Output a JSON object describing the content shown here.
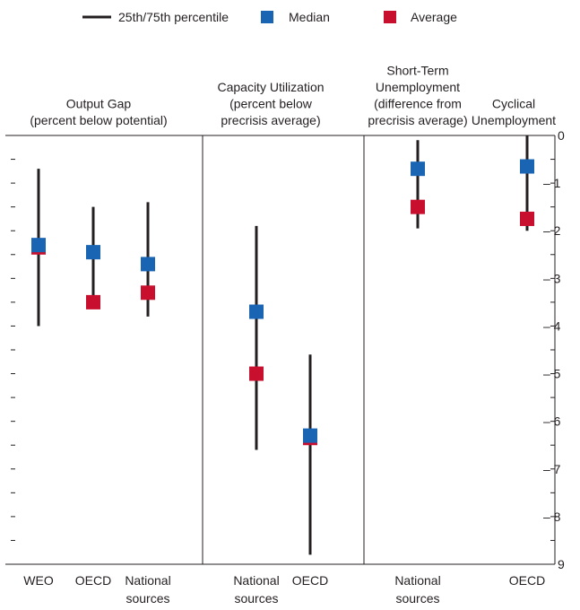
{
  "legend": {
    "range_label": "25th/75th percentile",
    "median_label": "Median",
    "average_label": "Average"
  },
  "colors": {
    "median": "#1a64b4",
    "average": "#c8102e",
    "range": "#231f20",
    "axis": "#231f20"
  },
  "chart_data": {
    "type": "scatter",
    "y_axis": {
      "min": 0,
      "max": 9,
      "inverted": true,
      "position": "right",
      "ticks": [
        0,
        1,
        2,
        3,
        4,
        5,
        6,
        7,
        8,
        9
      ]
    },
    "panels": [
      {
        "title_lines": [
          "Output Gap",
          "(percent below potential)"
        ],
        "items": [
          {
            "label_lines": [
              "WEO"
            ],
            "p25": 0.7,
            "p75": 4.0,
            "median": 2.3,
            "average": 2.35
          },
          {
            "label_lines": [
              "OECD"
            ],
            "p25": 1.5,
            "p75": 3.45,
            "median": 2.45,
            "average": 3.5
          },
          {
            "label_lines": [
              "National",
              "sources"
            ],
            "p25": 1.4,
            "p75": 3.8,
            "median": 2.7,
            "average": 3.3
          }
        ]
      },
      {
        "title_lines": [
          "Capacity Utilization",
          "(percent below",
          "precrisis average)"
        ],
        "items": [
          {
            "label_lines": [
              "National",
              "sources"
            ],
            "p25": 1.9,
            "p75": 6.6,
            "median": 3.7,
            "average": 5.0
          },
          {
            "label_lines": [
              "OECD"
            ],
            "p25": 4.6,
            "p75": 8.8,
            "median": 6.3,
            "average": 6.35
          }
        ]
      },
      {
        "title_lines": [
          "Short-Term",
          "Unemployment",
          "(difference from",
          "precrisis average)"
        ],
        "items": [
          {
            "label_lines": [
              "National",
              "sources"
            ],
            "p25": 0.1,
            "p75": 1.95,
            "median": 0.7,
            "average": 1.5
          }
        ]
      },
      {
        "title_lines": [
          "Cyclical",
          "Unemployment"
        ],
        "items": [
          {
            "label_lines": [
              "OECD"
            ],
            "p25": 0.0,
            "p75": 2.0,
            "median": 0.65,
            "average": 1.75
          }
        ]
      }
    ]
  }
}
